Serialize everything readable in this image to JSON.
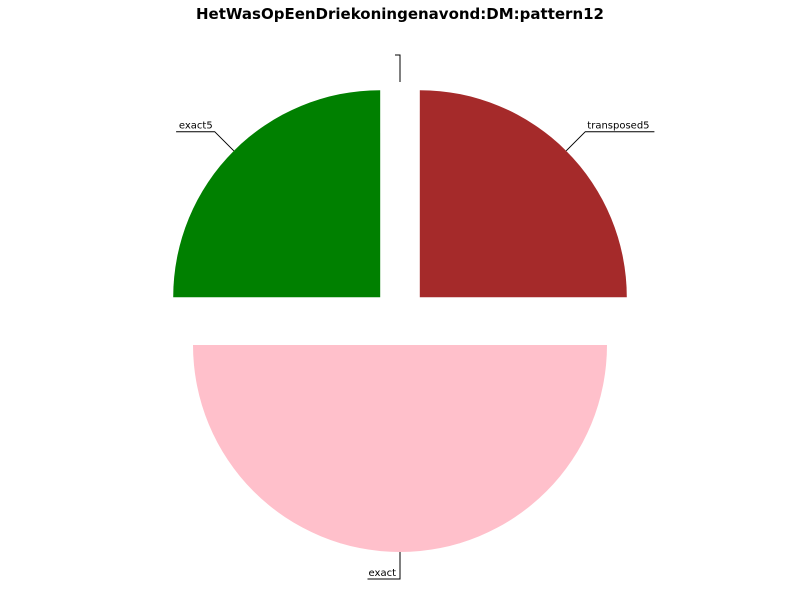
{
  "chart_data": {
    "type": "pie",
    "title": "HetWasOpEenDriekoningenavond:DM:pattern12",
    "slices": [
      {
        "label": "transposed5",
        "value": 25,
        "color": "#a52a2a"
      },
      {
        "label": "exact",
        "value": 50,
        "color": "#ffc0cb"
      },
      {
        "label": "exact5",
        "value": 25,
        "color": "#008000"
      },
      {
        "label": "",
        "value": 0,
        "color": "#ffffff"
      },
      {
        "label": "",
        "value": 0,
        "color": "#ffffff"
      },
      {
        "label": "",
        "value": 0,
        "color": "#ffffff"
      }
    ],
    "start_angle": "12 o'clock",
    "direction": "clockwise",
    "exploded": true,
    "legend": "none",
    "grid": false
  }
}
